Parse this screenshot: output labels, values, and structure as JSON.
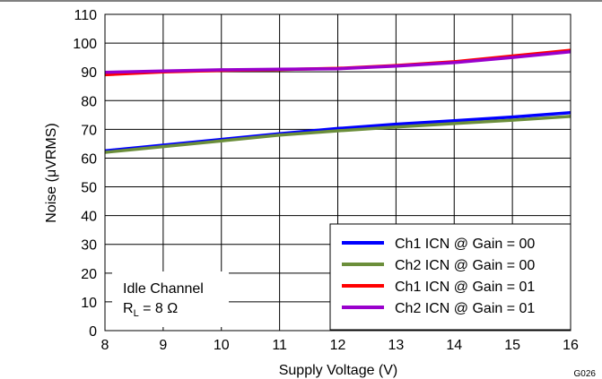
{
  "chart_data": {
    "type": "line",
    "xlabel": "Supply Voltage (V)",
    "ylabel": "Noise  (μVRMS)",
    "xlim": [
      8,
      16
    ],
    "ylim": [
      0,
      110
    ],
    "xticks": [
      8,
      9,
      10,
      11,
      12,
      13,
      14,
      15,
      16
    ],
    "yticks": [
      0,
      10,
      20,
      30,
      40,
      50,
      60,
      70,
      80,
      90,
      100,
      110
    ],
    "grid": true,
    "legend_position": "bottom-right",
    "series": [
      {
        "name": "Ch1 ICN @ Gain = 00",
        "color": "#0000ff",
        "x": [
          8,
          9,
          10,
          11,
          12,
          13,
          14,
          15,
          16
        ],
        "y": [
          62.5,
          64.5,
          66.5,
          68.5,
          70.3,
          71.8,
          73,
          74.3,
          75.8
        ]
      },
      {
        "name": "Ch2 ICN @ Gain = 00",
        "color": "#6b8e3a",
        "x": [
          8,
          9,
          10,
          11,
          12,
          13,
          14,
          15,
          16
        ],
        "y": [
          62,
          64,
          66,
          68,
          69.5,
          70.8,
          72,
          73.2,
          74.5
        ]
      },
      {
        "name": "Ch1 ICN @ Gain = 01",
        "color": "#ff0000",
        "x": [
          8,
          9,
          10,
          11,
          12,
          13,
          14,
          15,
          16
        ],
        "y": [
          89,
          90,
          90.5,
          90.8,
          91.2,
          92.2,
          93.5,
          95.5,
          97.5
        ]
      },
      {
        "name": "Ch2 ICN @ Gain = 01",
        "color": "#9900cc",
        "x": [
          8,
          9,
          10,
          11,
          12,
          13,
          14,
          15,
          16
        ],
        "y": [
          89.8,
          90.3,
          90.7,
          90.9,
          91.1,
          92,
          93.2,
          95,
          97
        ]
      }
    ],
    "annotation": {
      "line1": "Idle Channel",
      "rl_main": "R",
      "rl_sub": "L",
      "rl_value": " = 8 Ω"
    },
    "figure_code": "G026"
  }
}
